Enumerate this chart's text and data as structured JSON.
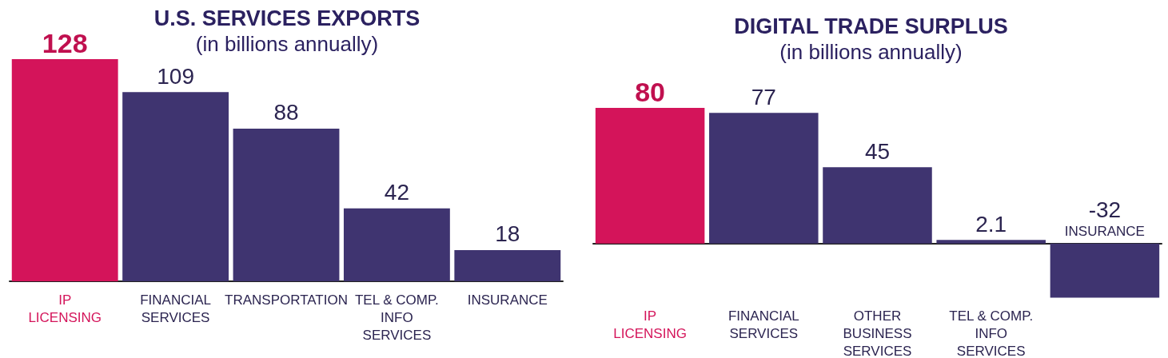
{
  "chart_data": [
    {
      "type": "bar",
      "title": "U.S. SERVICES EXPORTS",
      "subtitle": "(in billions annually)",
      "categories": [
        "IP LICENSING",
        "FINANCIAL SERVICES",
        "TRANSPORTATION",
        "TEL & COMP. INFO SERVICES",
        "INSURANCE"
      ],
      "values": [
        128,
        109,
        88,
        42,
        18
      ],
      "colors": [
        "#d4145a",
        "#3f3470",
        "#3f3470",
        "#3f3470",
        "#3f3470"
      ],
      "data_labels": true
    },
    {
      "type": "bar",
      "title": "DIGITAL TRADE SURPLUS",
      "subtitle": "(in billions annually)",
      "categories": [
        "IP LICENSING",
        "FINANCIAL SERVICES",
        "OTHER BUSINESS SERVICES",
        "TEL & COMP. INFO SERVICES",
        "INSURANCE"
      ],
      "values": [
        80,
        77,
        45,
        2.1,
        -32
      ],
      "colors": [
        "#d4145a",
        "#3f3470",
        "#3f3470",
        "#3f3470",
        "#3f3470"
      ],
      "data_labels": true
    }
  ]
}
